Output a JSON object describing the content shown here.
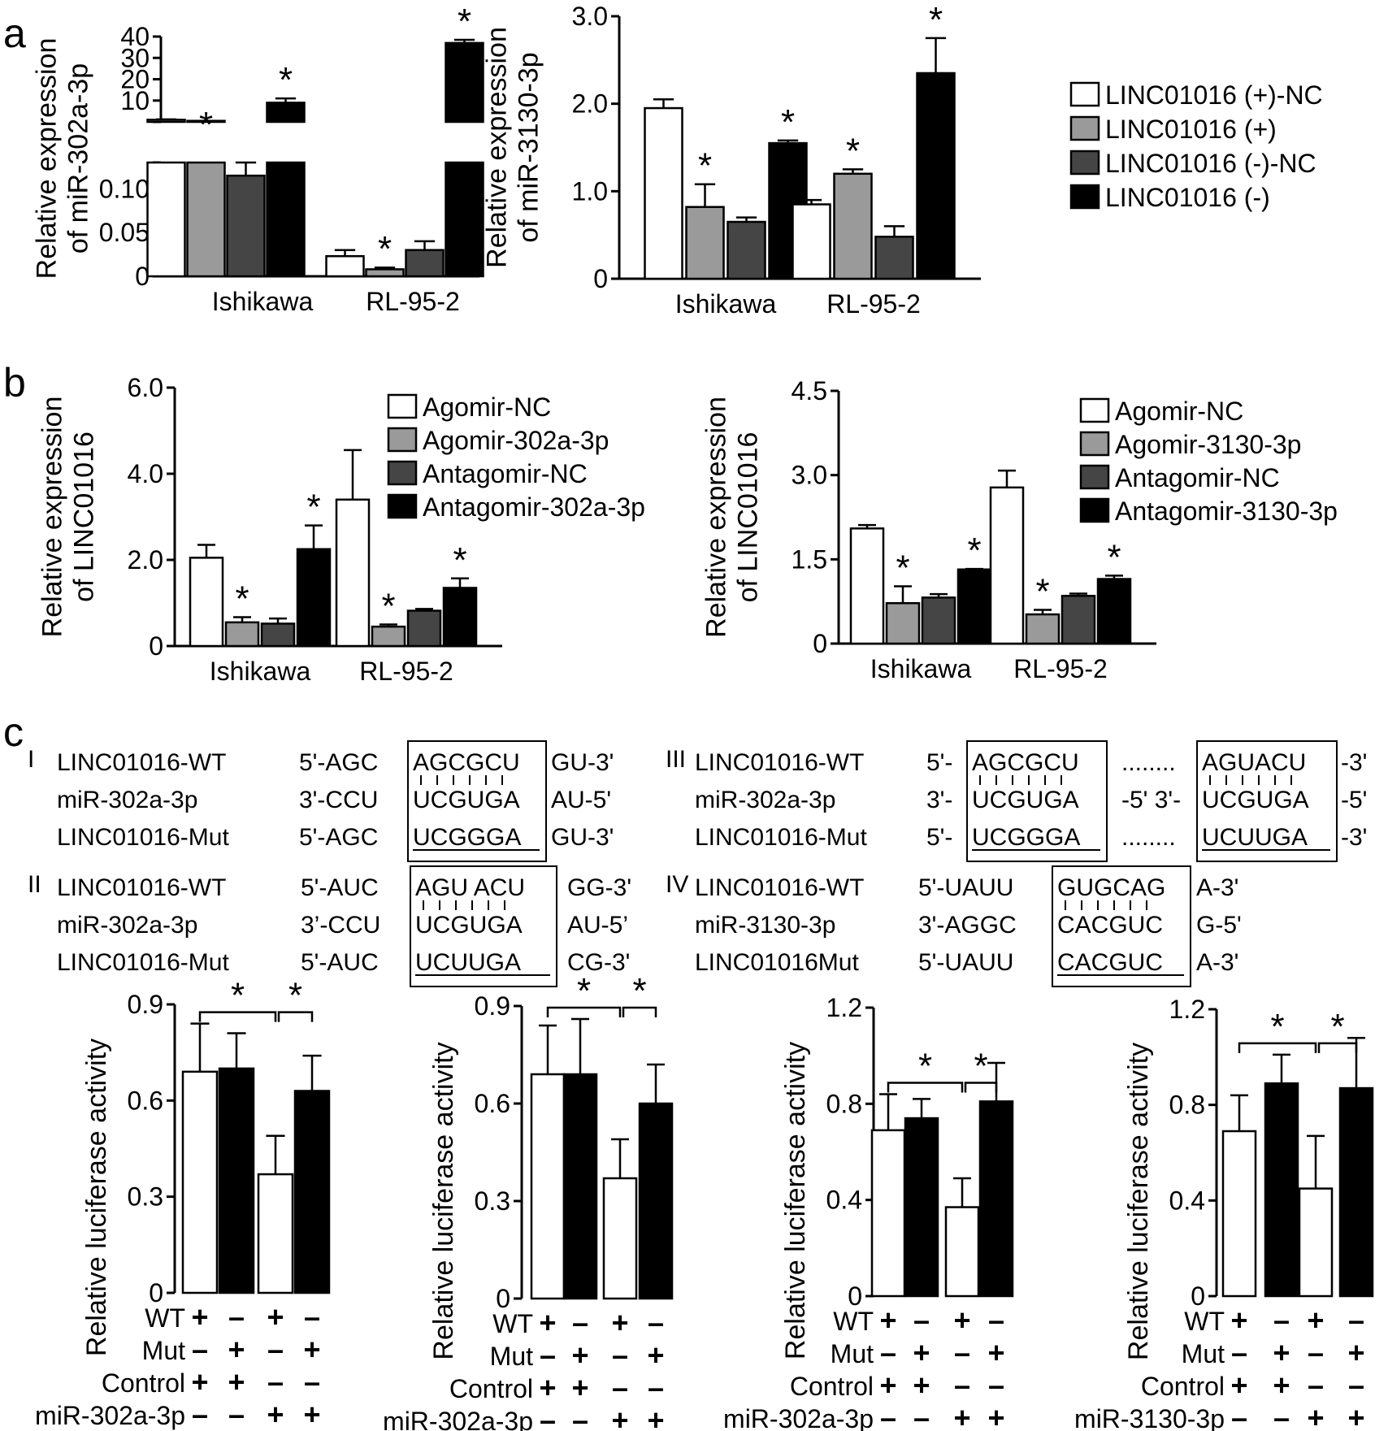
{
  "panels": {
    "a": "a",
    "b": "b",
    "c": "c"
  },
  "colors": {
    "white": "#ffffff",
    "light_gray": "#9a9a9a",
    "dark_gray": "#454545",
    "black": "#000000"
  },
  "chart_data": [
    {
      "id": "a1",
      "type": "bar",
      "ylabel": [
        "Relative expression",
        "of miR-302a-3p"
      ],
      "categories": [
        "Ishikawa",
        "RL-95-2"
      ],
      "broken_axis": true,
      "lower_ticks": [
        "0",
        "0.05",
        "0.10"
      ],
      "upper_ticks": [
        "10",
        "20",
        "30",
        "40"
      ],
      "lower_range": [
        0,
        0.13
      ],
      "upper_range": [
        0,
        40
      ],
      "series": [
        {
          "name": "LINC01016 (+)-NC",
          "values": [
            1.0,
            0.023
          ],
          "errors": [
            0.2,
            0.007
          ]
        },
        {
          "name": "LINC01016 (+)",
          "values": [
            0.5,
            0.008
          ],
          "errors": [
            0,
            0.002
          ]
        },
        {
          "name": "LINC01016 (-)-NC",
          "values": [
            0.115,
            0.03
          ],
          "errors": [
            0.015,
            0.01
          ]
        },
        {
          "name": "LINC01016 (-)",
          "values": [
            9.0,
            37.0
          ],
          "errors": [
            2.0,
            1.5
          ]
        }
      ],
      "significance": [
        "",
        "*",
        "",
        "*",
        "",
        "*",
        "",
        "*"
      ]
    },
    {
      "id": "a2",
      "type": "bar",
      "ylabel": [
        "Relative expression",
        "of miR-3130-3p"
      ],
      "categories": [
        "Ishikawa",
        "RL-95-2"
      ],
      "yticks": [
        "0",
        "1.0",
        "2.0",
        "3.0"
      ],
      "ylim": [
        0,
        3.0
      ],
      "series": [
        {
          "name": "LINC01016 (+)-NC",
          "values": [
            1.95,
            0.85
          ],
          "errors": [
            0.1,
            0.05
          ]
        },
        {
          "name": "LINC01016 (+)",
          "values": [
            0.82,
            1.2
          ],
          "errors": [
            0.26,
            0.05
          ]
        },
        {
          "name": "LINC01016 (-)-NC",
          "values": [
            0.65,
            0.48
          ],
          "errors": [
            0.05,
            0.12
          ]
        },
        {
          "name": "LINC01016 (-)",
          "values": [
            1.55,
            2.35
          ],
          "errors": [
            0.03,
            0.4
          ]
        }
      ],
      "significance": [
        "",
        "*",
        "",
        "*",
        "",
        "*",
        "",
        "*"
      ],
      "legend": [
        "LINC01016 (+)-NC",
        "LINC01016 (+)",
        "LINC01016 (-)-NC",
        "LINC01016 (-)"
      ]
    },
    {
      "id": "b1",
      "type": "bar",
      "ylabel": [
        "Relative expression",
        "of LINC01016"
      ],
      "categories": [
        "Ishikawa",
        "RL-95-2"
      ],
      "yticks": [
        "0",
        "2.0",
        "4.0",
        "6.0"
      ],
      "ylim": [
        0,
        6.0
      ],
      "series": [
        {
          "name": "Agomir-NC",
          "values": [
            2.05,
            3.4
          ],
          "errors": [
            0.3,
            1.15
          ]
        },
        {
          "name": "Agomir-302a-3p",
          "values": [
            0.55,
            0.45
          ],
          "errors": [
            0.12,
            0.05
          ]
        },
        {
          "name": "Antagomir-NC",
          "values": [
            0.52,
            0.82
          ],
          "errors": [
            0.12,
            0.04
          ]
        },
        {
          "name": "Antagomir-302a-3p",
          "values": [
            2.25,
            1.35
          ],
          "errors": [
            0.55,
            0.22
          ]
        }
      ],
      "significance": [
        "",
        "*",
        "",
        "*",
        "",
        "*",
        "",
        "*"
      ],
      "legend": [
        "Agomir-NC",
        "Agomir-302a-3p",
        "Antagomir-NC",
        "Antagomir-302a-3p"
      ]
    },
    {
      "id": "b2",
      "type": "bar",
      "ylabel": [
        "Relative expression",
        "of LINC01016"
      ],
      "categories": [
        "Ishikawa",
        "RL-95-2"
      ],
      "yticks": [
        "0",
        "1.5",
        "3.0",
        "4.5"
      ],
      "ylim": [
        0,
        4.5
      ],
      "series": [
        {
          "name": "Agomir-NC",
          "values": [
            2.05,
            2.78
          ],
          "errors": [
            0.06,
            0.3
          ]
        },
        {
          "name": "Agomir-3130-3p",
          "values": [
            0.72,
            0.52
          ],
          "errors": [
            0.3,
            0.08
          ]
        },
        {
          "name": "Antagomir-NC",
          "values": [
            0.82,
            0.85
          ],
          "errors": [
            0.06,
            0.04
          ]
        },
        {
          "name": "Antagomir-3130-3p",
          "values": [
            1.32,
            1.15
          ],
          "errors": [
            0.01,
            0.06
          ]
        }
      ],
      "significance": [
        "",
        "*",
        "",
        "*",
        "",
        "*",
        "",
        "*"
      ],
      "legend": [
        "Agomir-NC",
        "Agomir-3130-3p",
        "Antagomir-NC",
        "Antagomir-3130-3p"
      ]
    },
    {
      "id": "c1",
      "type": "bar",
      "ylabel": [
        "Relative luciferase activity"
      ],
      "yticks": [
        "0",
        "0.3",
        "0.6",
        "0.9"
      ],
      "ylim": [
        0,
        0.9
      ],
      "values": [
        0.69,
        0.7,
        0.37,
        0.63
      ],
      "errors": [
        0.15,
        0.11,
        0.12,
        0.11
      ],
      "fills": [
        "white",
        "black",
        "white",
        "black"
      ],
      "rows": [
        {
          "label": "WT",
          "signs": [
            "+",
            "–",
            "+",
            "–"
          ]
        },
        {
          "label": "Mut",
          "signs": [
            "–",
            "+",
            "–",
            "+"
          ]
        },
        {
          "label": "Control",
          "signs": [
            "+",
            "+",
            "–",
            "–"
          ]
        },
        {
          "label": "miR-302a-3p",
          "signs": [
            "–",
            "–",
            "+",
            "+"
          ]
        }
      ],
      "stars": [
        "*",
        "*"
      ]
    },
    {
      "id": "c2",
      "type": "bar",
      "ylabel": [
        "Relative luciferase activity"
      ],
      "yticks": [
        "0",
        "0.3",
        "0.6",
        "0.9"
      ],
      "ylim": [
        0,
        0.9
      ],
      "values": [
        0.69,
        0.69,
        0.37,
        0.6
      ],
      "errors": [
        0.15,
        0.17,
        0.12,
        0.12
      ],
      "fills": [
        "white",
        "black",
        "white",
        "black"
      ],
      "rows": [
        {
          "label": "WT",
          "signs": [
            "+",
            "–",
            "+",
            "–"
          ]
        },
        {
          "label": "Mut",
          "signs": [
            "–",
            "+",
            "–",
            "+"
          ]
        },
        {
          "label": "Control",
          "signs": [
            "+",
            "+",
            "–",
            "–"
          ]
        },
        {
          "label": "miR-302a-3p",
          "signs": [
            "–",
            "–",
            "+",
            "+"
          ]
        }
      ],
      "stars": [
        "*",
        "*"
      ]
    },
    {
      "id": "c3",
      "type": "bar",
      "ylabel": [
        "Relative luciferase activity"
      ],
      "yticks": [
        "0",
        "0.4",
        "0.8",
        "1.2"
      ],
      "ylim": [
        0,
        1.2
      ],
      "values": [
        0.69,
        0.74,
        0.37,
        0.81
      ],
      "errors": [
        0.15,
        0.08,
        0.12,
        0.16
      ],
      "fills": [
        "white",
        "black",
        "white",
        "black"
      ],
      "rows": [
        {
          "label": "WT",
          "signs": [
            "+",
            "–",
            "+",
            "–"
          ]
        },
        {
          "label": "Mut",
          "signs": [
            "–",
            "+",
            "–",
            "+"
          ]
        },
        {
          "label": "Control",
          "signs": [
            "+",
            "+",
            "–",
            "–"
          ]
        },
        {
          "label": "miR-302a-3p",
          "signs": [
            "–",
            "–",
            "+",
            "+"
          ]
        }
      ],
      "stars": [
        "*",
        "*"
      ]
    },
    {
      "id": "c4",
      "type": "bar",
      "ylabel": [
        "Relative luciferase activity"
      ],
      "yticks": [
        "0",
        "0.4",
        "0.8",
        "1.2"
      ],
      "ylim": [
        0,
        1.2
      ],
      "values": [
        0.69,
        0.89,
        0.45,
        0.87
      ],
      "errors": [
        0.15,
        0.12,
        0.22,
        0.21
      ],
      "fills": [
        "white",
        "black",
        "white",
        "black"
      ],
      "rows": [
        {
          "label": "WT",
          "signs": [
            "+",
            "–",
            "+",
            "–"
          ]
        },
        {
          "label": "Mut",
          "signs": [
            "–",
            "+",
            "–",
            "+"
          ]
        },
        {
          "label": "Control",
          "signs": [
            "+",
            "+",
            "–",
            "–"
          ]
        },
        {
          "label": "miR-3130-3p",
          "signs": [
            "–",
            "–",
            "+",
            "+"
          ]
        }
      ],
      "stars": [
        "*",
        "*"
      ]
    }
  ],
  "sequences": [
    {
      "numeral": "I",
      "rows": [
        {
          "name": "LINC01016-WT",
          "left": "5'-AGC",
          "box": "AGCGCU",
          "right": "GU-3'"
        },
        {
          "name": "miR-302a-3p",
          "left": "3'-CCU",
          "box": "UCGUGA",
          "right": "AU-5'"
        },
        {
          "name": "LINC01016-Mut",
          "left": "5'-AGC",
          "box": "UCGGGA",
          "right": "GU-3'"
        }
      ]
    },
    {
      "numeral": "II",
      "rows": [
        {
          "name": "LINC01016-WT",
          "left": "5'-AUC",
          "box": "AGU ACU",
          "right": "GG-3'"
        },
        {
          "name": "miR-302a-3p",
          "left": "3’-CCU",
          "box": "UCGUGA",
          "right": "AU-5’"
        },
        {
          "name": "LINC01016-Mut",
          "left": "5'-AUC",
          "box": "UCUUGA",
          "right": "CG-3'"
        }
      ]
    },
    {
      "numeral": "III",
      "rows": [
        {
          "name": "LINC01016-WT",
          "left": "5'-",
          "box": "AGCGCU",
          "mid": "........",
          "box2": "AGUACU",
          "right": "-3'"
        },
        {
          "name": "miR-302a-3p",
          "left": "3'-",
          "box": "UCGUGA",
          "mid": "-5' 3'-",
          "box2": "UCGUGA",
          "right": "-5'"
        },
        {
          "name": "LINC01016-Mut",
          "left": "5'-",
          "box": "UCGGGA",
          "mid": "........",
          "box2": "UCUUGA",
          "right": "-3'"
        }
      ]
    },
    {
      "numeral": "IV",
      "rows": [
        {
          "name": "LINC01016-WT",
          "left": "5'-UAUU",
          "box": "GUGCAG",
          "right": "A-3'"
        },
        {
          "name": "miR-3130-3p",
          "left": "3'-AGGC",
          "box": "CACGUC",
          "right": "G-5'"
        },
        {
          "name": "LINC01016Mut",
          "left": "5'-UAUU",
          "box": "CACGUC",
          "right": "A-3'"
        }
      ]
    }
  ]
}
